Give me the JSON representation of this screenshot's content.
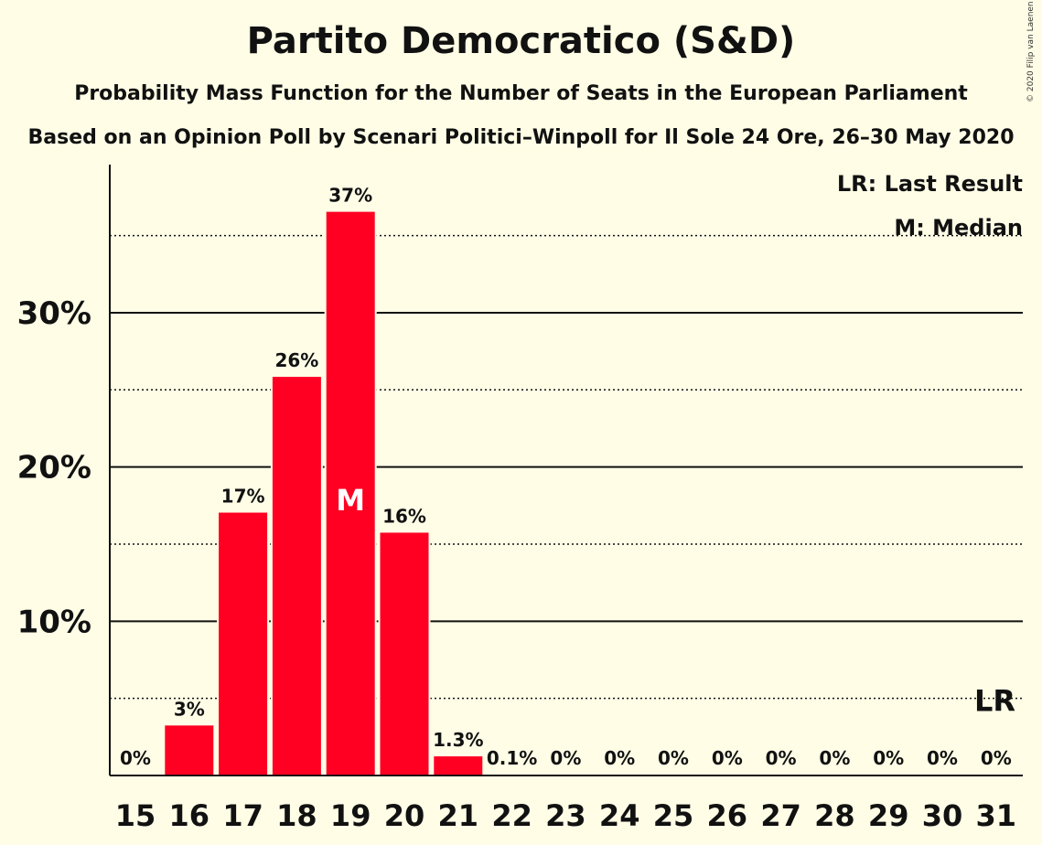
{
  "title": "Partito Democratico (S&D)",
  "subtitle": "Probability Mass Function for the Number of Seats in the European Parliament",
  "subtitle2": "Based on an Opinion Poll by Scenari Politici–Winpoll for Il Sole 24 Ore, 26–30 May 2020",
  "copyright": "© 2020 Filip van Laenen",
  "legend": {
    "last_result": "LR: Last Result",
    "median": "M: Median"
  },
  "colors": {
    "bar": "#FF0022",
    "background": "#FFFDE6",
    "text": "#111111"
  },
  "chart_data": {
    "type": "bar",
    "title": "Partito Democratico (S&D)",
    "xlabel": "",
    "ylabel": "",
    "categories": [
      "15",
      "16",
      "17",
      "18",
      "19",
      "20",
      "21",
      "22",
      "23",
      "24",
      "25",
      "26",
      "27",
      "28",
      "29",
      "30",
      "31"
    ],
    "values": [
      0,
      3.3,
      17.1,
      25.9,
      36.6,
      15.8,
      1.3,
      0.1,
      0,
      0,
      0,
      0,
      0,
      0,
      0,
      0,
      0
    ],
    "data_labels": [
      "0%",
      "3%",
      "17%",
      "26%",
      "37%",
      "16%",
      "1.3%",
      "0.1%",
      "0%",
      "0%",
      "0%",
      "0%",
      "0%",
      "0%",
      "0%",
      "0%",
      "0%"
    ],
    "ylim": [
      0,
      39.6
    ],
    "yticks": [
      10,
      20,
      30
    ],
    "ytick_labels": [
      "10%",
      "20%",
      "30%"
    ],
    "minor_gridlines": [
      5,
      15,
      25,
      35
    ],
    "median_seat": "19",
    "median_label": "M",
    "last_result_seat": "31",
    "last_result_value": 5,
    "last_result_label": "LR",
    "grid": true,
    "legend_position": "top-right"
  }
}
